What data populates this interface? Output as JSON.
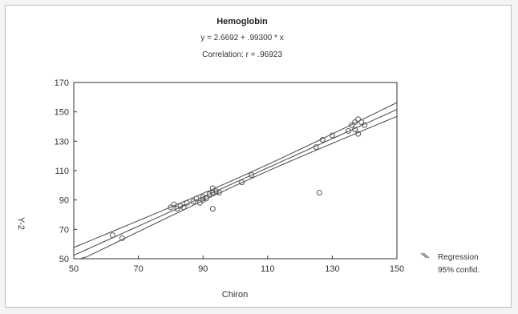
{
  "chart_data": {
    "type": "scatter",
    "title": "Hemoglobin",
    "subtitle_equation": "y = 2.6692 + .99300 * x",
    "subtitle_correlation": "Correlation: r = .96923",
    "xlabel": "Chiron",
    "ylabel": "Y-2",
    "xlim": [
      50,
      150
    ],
    "ylim": [
      50,
      170
    ],
    "xticks": [
      50,
      70,
      90,
      110,
      130,
      150
    ],
    "yticks": [
      50,
      70,
      90,
      110,
      130,
      150,
      170
    ],
    "grid": false,
    "legend_position": "bottom-right",
    "legend": {
      "regression_label": "Regression",
      "confidence_label": "95% confid."
    },
    "regression": {
      "intercept": 2.6692,
      "slope": 0.993
    },
    "series": [
      {
        "name": "",
        "x": [
          62,
          65,
          80,
          81,
          82,
          83,
          84,
          85,
          87,
          88,
          89,
          90,
          90,
          91,
          92,
          93,
          94,
          93,
          95,
          93,
          102,
          105,
          125,
          127,
          130,
          135,
          136,
          137,
          137,
          138,
          139,
          140,
          138,
          126
        ],
        "y": [
          66,
          64,
          85,
          87,
          84,
          86,
          85,
          88,
          89,
          91,
          88,
          92,
          90,
          91,
          94,
          95,
          96,
          98,
          95,
          84,
          102,
          107,
          126,
          131,
          134,
          137,
          141,
          138,
          143,
          135,
          143,
          141,
          145,
          95
        ]
      }
    ],
    "colors": {
      "points": "#555555",
      "lines": "#444444",
      "axis": "#333333"
    }
  }
}
